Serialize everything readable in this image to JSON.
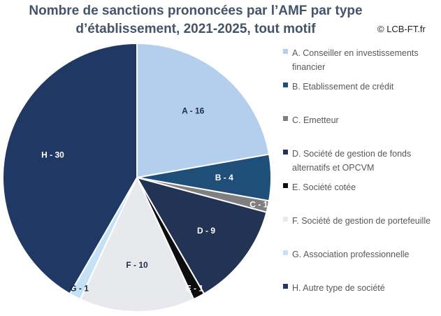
{
  "header": {
    "title_line1": "Nombre de sanctions prononcées par l’AMF par type",
    "title_line2": "d’établissement, 2021-2025, tout motif",
    "copyright": "© LCB-FT.fr"
  },
  "chart_data": {
    "type": "pie",
    "title": "Nombre de sanctions prononcées par l’AMF par type d’établissement, 2021-2025, tout motif",
    "legend_position": "right",
    "slices": [
      {
        "code": "A",
        "label": "A - 16",
        "legend": "A. Conseiller en investissements financier",
        "value": 16,
        "color": "#b4cfee",
        "text_color": "#1f2d44"
      },
      {
        "code": "B",
        "label": "B - 4",
        "legend": "B. Etablissement de crédit",
        "value": 4,
        "color": "#1f4e79",
        "text_color": "#ffffff"
      },
      {
        "code": "C",
        "label": "C - 1",
        "legend": "C. Emetteur",
        "value": 1,
        "color": "#7f7f7f",
        "text_color": "#ffffff"
      },
      {
        "code": "D",
        "label": "D - 9",
        "legend": "D. Société de gestion de fonds alternatifs et OPCVM",
        "value": 9,
        "color": "#223354",
        "text_color": "#ffffff"
      },
      {
        "code": "E",
        "label": "E - 1",
        "legend": "E. Société cotée",
        "value": 1,
        "color": "#0d0d0d",
        "text_color": "#ffffff"
      },
      {
        "code": "F",
        "label": "F - 10",
        "legend": "F. Société de gestion de portefeuille",
        "value": 10,
        "color": "#e8e9ec",
        "text_color": "#1f2d44"
      },
      {
        "code": "G",
        "label": "G - 1",
        "legend": "G. Association professionnelle",
        "value": 1,
        "color": "#c6e1f5",
        "text_color": "#1f2d44"
      },
      {
        "code": "H",
        "label": "H - 30",
        "legend": "H. Autre type de société",
        "value": 30,
        "color": "#1f3864",
        "text_color": "#ffffff"
      }
    ]
  }
}
